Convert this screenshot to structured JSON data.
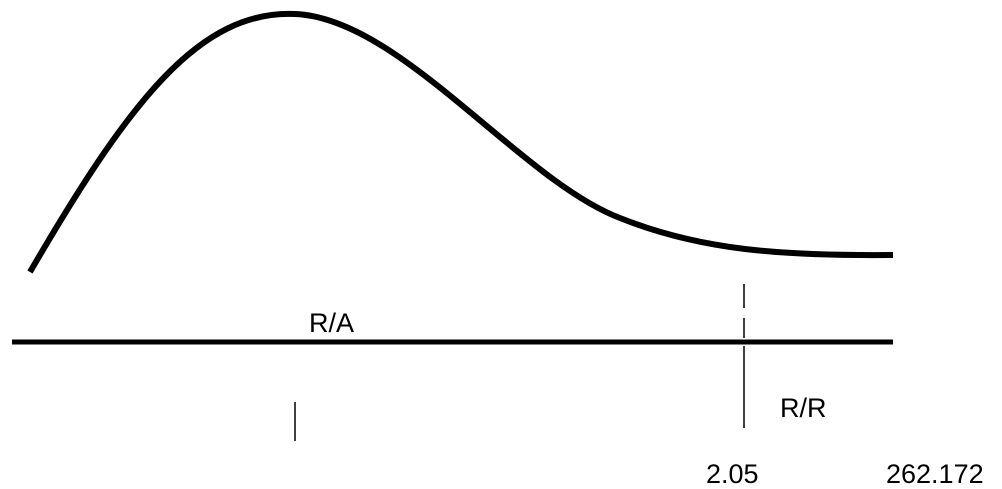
{
  "diagram": {
    "region_left_label": "R/A",
    "region_right_label": "R/R",
    "threshold_value": "2.05",
    "end_value": "262.172",
    "stroke_color": "#000000",
    "background_color": "#ffffff"
  }
}
